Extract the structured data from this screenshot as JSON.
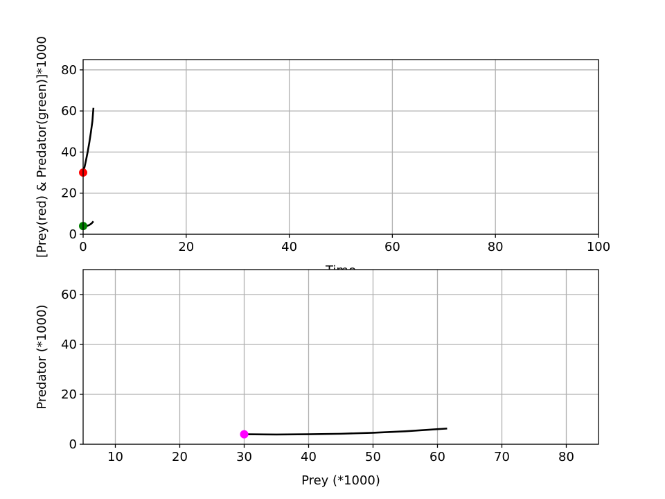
{
  "chart_data": [
    {
      "type": "line",
      "title": "",
      "xlabel": "Time",
      "ylabel": "[Prey(red) & Predator(green)]*1000",
      "xlim": [
        0,
        100
      ],
      "ylim": [
        0,
        85
      ],
      "xticks": [
        0,
        20,
        40,
        60,
        80,
        100
      ],
      "yticks": [
        0,
        20,
        40,
        60,
        80
      ],
      "grid": true,
      "series": [
        {
          "color": "#000000",
          "points": [
            [
              0,
              30
            ],
            [
              0.3,
              33
            ],
            [
              0.6,
              36.5
            ],
            [
              0.9,
              40.3
            ],
            [
              1.2,
              44.6
            ],
            [
              1.5,
              49.5
            ],
            [
              1.8,
              55
            ],
            [
              2.0,
              61.5
            ]
          ]
        },
        {
          "color": "#000000",
          "points": [
            [
              0,
              4
            ],
            [
              0.4,
              3.9
            ],
            [
              0.8,
              4.1
            ],
            [
              1.2,
              4.5
            ],
            [
              1.6,
              5.2
            ],
            [
              2.0,
              6.3
            ]
          ]
        }
      ],
      "markers": [
        {
          "x": 0,
          "y": 30,
          "color": "#ff0000"
        },
        {
          "x": 0,
          "y": 4,
          "color": "#008000"
        }
      ]
    },
    {
      "type": "line",
      "title": "",
      "xlabel": "Prey (*1000)",
      "ylabel": "Predator (*1000)",
      "xlim": [
        5,
        85
      ],
      "ylim": [
        0,
        70
      ],
      "xticks": [
        10,
        20,
        30,
        40,
        50,
        60,
        70,
        80
      ],
      "yticks": [
        0,
        20,
        40,
        60
      ],
      "grid": true,
      "series": [
        {
          "color": "#000000",
          "points": [
            [
              30,
              4
            ],
            [
              35,
              3.9
            ],
            [
              40,
              4.0
            ],
            [
              45,
              4.2
            ],
            [
              50,
              4.6
            ],
            [
              55,
              5.2
            ],
            [
              61.5,
              6.3
            ]
          ]
        }
      ],
      "markers": [
        {
          "x": 30,
          "y": 4,
          "color": "#ff00ff"
        }
      ]
    }
  ]
}
